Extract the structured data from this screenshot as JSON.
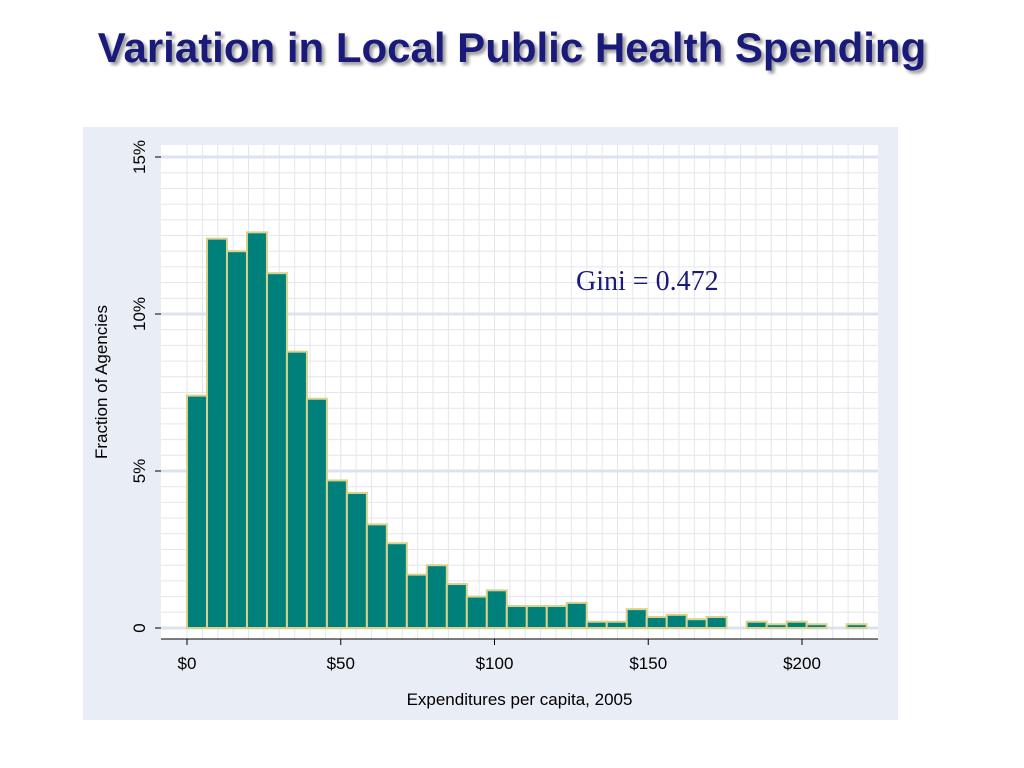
{
  "slide": {
    "title": "Variation in Local Public Health Spending"
  },
  "chart_data": {
    "type": "bar",
    "subtype": "histogram",
    "xlabel": "Expenditures per capita, 2005",
    "ylabel": "Fraction of Agencies",
    "xlim": [
      0,
      225
    ],
    "ylim": [
      0,
      15
    ],
    "bin_width": 6.5,
    "bin_start": 0,
    "values": [
      7.4,
      12.4,
      12.0,
      12.6,
      11.3,
      8.8,
      7.3,
      4.7,
      4.3,
      3.3,
      2.7,
      1.7,
      2.0,
      1.4,
      1.0,
      1.2,
      0.7,
      0.7,
      0.7,
      0.8,
      0.2,
      0.2,
      0.6,
      0.35,
      0.42,
      0.28,
      0.35,
      0,
      0.2,
      0.12,
      0.2,
      0.12,
      0,
      0.12
    ],
    "x_ticks": [
      {
        "value": 0,
        "label": "$0"
      },
      {
        "value": 50,
        "label": "$50"
      },
      {
        "value": 100,
        "label": "$100"
      },
      {
        "value": 150,
        "label": "$150"
      },
      {
        "value": 200,
        "label": "$200"
      }
    ],
    "y_ticks": [
      {
        "value": 0,
        "label": "0"
      },
      {
        "value": 5,
        "label": "5%"
      },
      {
        "value": 10,
        "label": "10%"
      },
      {
        "value": 15,
        "label": "15%"
      }
    ],
    "grid": true,
    "annotation": "Gini = 0.472",
    "colors": {
      "bar_fill": "#00807b",
      "bar_stroke": "#d9d28c",
      "plot_background": "#ffffff",
      "panel_background": "#e9edf5",
      "grid_minor": "#e3e6ec",
      "grid_major": "#dde3ee",
      "title": "#1a1a7a"
    }
  }
}
